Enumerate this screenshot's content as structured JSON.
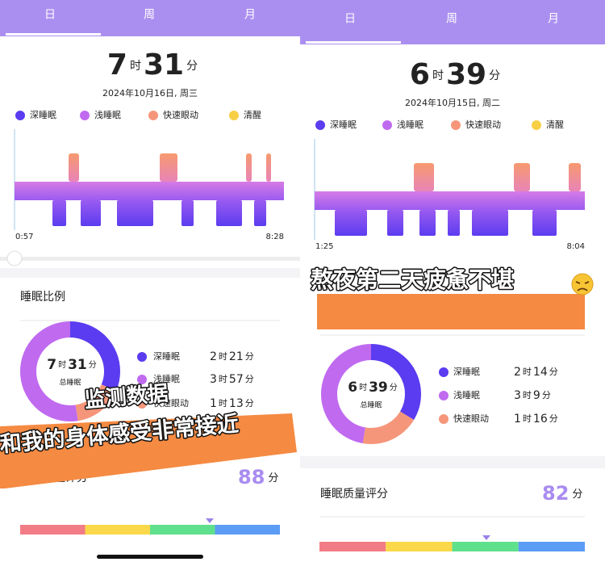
{
  "units": {
    "hour": "时",
    "minute": "分"
  },
  "panels": [
    {
      "tabs": [
        "日",
        "周",
        "月"
      ],
      "total": {
        "hours": 7,
        "minutes": 31
      },
      "date": "2024年10月16日, 周三",
      "legend": [
        "深睡眠",
        "浅睡眠",
        "快速眼动",
        "清醒"
      ],
      "start": "0:57",
      "end": "8:28",
      "section_title": "睡眠比例",
      "donut_caption": "总睡眠",
      "stages": [
        {
          "name": "深睡眠",
          "hours": 2,
          "minutes": 21
        },
        {
          "name": "浅睡眠",
          "hours": 3,
          "minutes": 57
        },
        {
          "name": "快速眼动",
          "hours": 1,
          "minutes": 13
        }
      ],
      "score_title": "睡眠质量评分",
      "score": 88,
      "caption": [
        "监测数据",
        "和我的身体感受非常接近"
      ]
    },
    {
      "tabs": [
        "日",
        "周",
        "月"
      ],
      "total": {
        "hours": 6,
        "minutes": 39
      },
      "date": "2024年10月15日, 周二",
      "legend": [
        "深睡眠",
        "浅睡眠",
        "快速眼动",
        "清醒"
      ],
      "start": "1:25",
      "end": "8:04",
      "section_title": "睡眠比例",
      "donut_caption": "总睡眠",
      "stages": [
        {
          "name": "深睡眠",
          "hours": 2,
          "minutes": 14
        },
        {
          "name": "浅睡眠",
          "hours": 3,
          "minutes": 9
        },
        {
          "name": "快速眼动",
          "hours": 1,
          "minutes": 16
        }
      ],
      "score_title": "睡眠质量评分",
      "score": 82,
      "caption": [
        "熬夜第二天疲惫不堪"
      ]
    }
  ]
}
